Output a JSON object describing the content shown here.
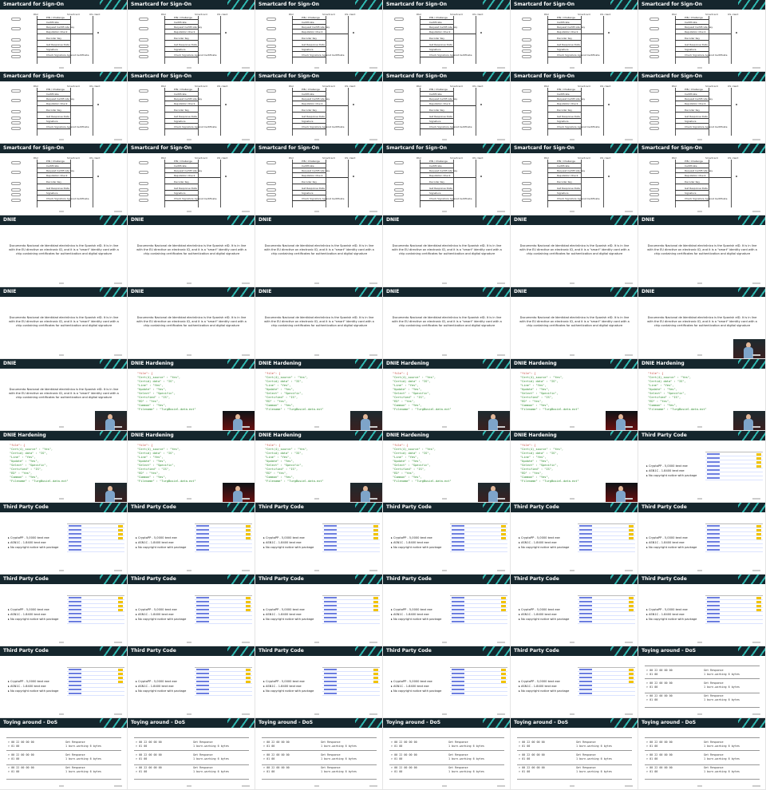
{
  "slides": {
    "smartcard": {
      "title": "Smartcard for Sign-On",
      "lanes": [
        "PAU",
        "Smartcard",
        "OS client"
      ],
      "messages": [
        "PIN / Challenge",
        "Certificate",
        "Request Certificate Key",
        "Reputation Check",
        "Decoder Key",
        "Get Response Data",
        "Signature",
        "Check Signature Against Certificate"
      ]
    },
    "dnie": {
      "title": "DNIE",
      "paragraph": "Documento Nacional de Identidad electrónico is the Spanish eID. It is in line with the EU directive on electronic ID, and it is a \"smart\" identity card with a chip containing certificates for authentication and digital signature"
    },
    "hardening": {
      "title": "DNIE Hardening",
      "json_lines": [
        "\"file\": {",
        "  \"Cert(4)_source\" : \"Yes\",",
        "  \"Certid) data\" : \"IS\",",
        "  \"Line\" : \"Yes\",",
        "  \"Update\" : \"Yes\",",
        "  \"Select\" : \"Specific\",",
        "  \"Certified\" : \"IS\",",
        "  \"ED\" : \"Yes\",",
        "  \"Common\" : \"Yes\",",
        "  \"Filename\" : \"TurgBusiel-data.ext\""
      ]
    },
    "thirdparty": {
      "title": "Third Party Code",
      "bullets": [
        "CryptoPP - 5,0000 kext exe",
        "ASN1C - 1.8400 kext exe",
        "No copyright notice with package"
      ]
    },
    "dos": {
      "title": "Toying around - DoS",
      "cmd_lines": [
        "> 00 22 00 00 00",
        "> 01 00",
        "> 00 22 00 00 00",
        "> 01 00",
        "> 00 22 00 00 00",
        "> 01 00"
      ],
      "resp_lines": [
        "Get Response",
        "1 burn-working 6 bytes",
        "Get Response",
        "1 burn-working 6 bytes",
        "Get Response",
        "1 burn-working 6 bytes"
      ]
    }
  },
  "layout_order": [
    "smartcard",
    "smartcard",
    "smartcard",
    "smartcard",
    "smartcard",
    "smartcard",
    "smartcard",
    "smartcard",
    "smartcard",
    "smartcard",
    "smartcard",
    "smartcard",
    "smartcard",
    "smartcard",
    "smartcard",
    "smartcard",
    "smartcard",
    "smartcard",
    "dnie",
    "dnie",
    "dnie",
    "dnie",
    "dnie",
    "dnie",
    "dnie",
    "dnie",
    "dnie",
    "dnie",
    "dnie",
    "dnie",
    "dnie",
    "hardening",
    "hardening",
    "hardening",
    "hardening",
    "hardening",
    "hardening",
    "hardening",
    "hardening",
    "hardening",
    "hardening",
    "thirdparty",
    "thirdparty",
    "thirdparty",
    "thirdparty",
    "thirdparty",
    "thirdparty",
    "thirdparty",
    "thirdparty",
    "thirdparty",
    "thirdparty",
    "thirdparty",
    "thirdparty",
    "thirdparty",
    "thirdparty",
    "thirdparty",
    "thirdparty",
    "thirdparty",
    "thirdparty",
    "dos",
    "dos",
    "dos",
    "dos",
    "dos",
    "dos",
    "dos"
  ],
  "speaker_tiles": [
    29,
    30,
    31,
    32,
    33,
    34,
    35,
    36,
    37,
    38,
    39,
    40
  ],
  "colors": {
    "header": "#15262d",
    "accent": "#2fb8b0"
  }
}
